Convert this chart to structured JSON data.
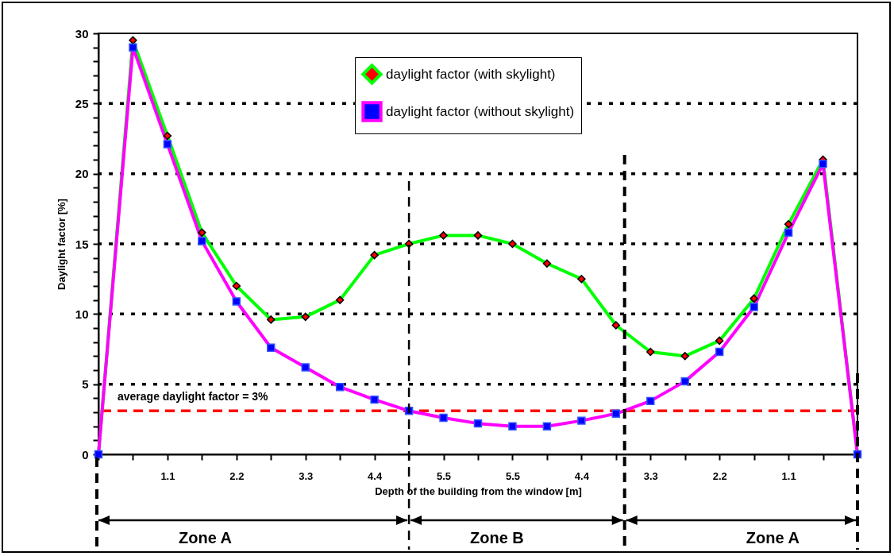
{
  "chart_data": {
    "type": "line",
    "xlabel": "Depth of the building from the window [m]",
    "ylabel": "Daylight factor [%]",
    "categories": [
      null,
      null,
      "1.1",
      null,
      "2.2",
      null,
      "3.3",
      null,
      "4.4",
      null,
      "5.5",
      null,
      "5.5",
      null,
      "4.4",
      null,
      "3.3",
      null,
      "2.2",
      null,
      "1.1",
      null,
      null
    ],
    "series": [
      {
        "name": "daylight factor (with skylight)",
        "color": "#00ff00",
        "marker": "diamond",
        "values": [
          0,
          29.5,
          22.7,
          15.8,
          12.0,
          9.6,
          9.8,
          11.0,
          14.2,
          15.0,
          15.6,
          15.6,
          15.0,
          13.6,
          12.5,
          9.2,
          7.3,
          7.0,
          8.1,
          11.1,
          16.4,
          21.0,
          0
        ]
      },
      {
        "name": "daylight factor (without skylight)",
        "color": "#ff00ff",
        "marker": "square",
        "values": [
          0,
          29.0,
          22.1,
          15.2,
          10.9,
          7.6,
          6.2,
          4.8,
          3.9,
          3.1,
          2.6,
          2.2,
          2.0,
          2.0,
          2.4,
          2.9,
          3.8,
          5.2,
          7.3,
          10.5,
          15.8,
          20.7,
          0
        ]
      }
    ],
    "ylim": [
      0,
      30
    ],
    "yticks": [
      0,
      {
        "value": 1,
        "label": null
      },
      {
        "value": 2,
        "label": null
      },
      {
        "value": 3,
        "label": null
      },
      {
        "value": 4,
        "label": null
      },
      5,
      {
        "value": 6,
        "label": null
      },
      {
        "value": 7,
        "label": null
      },
      {
        "value": 8,
        "label": null
      },
      {
        "value": 9,
        "label": null
      },
      10,
      {
        "value": 11,
        "label": null
      },
      {
        "value": 12,
        "label": null
      },
      {
        "value": 13,
        "label": null
      },
      {
        "value": 14,
        "label": null
      },
      15,
      {
        "value": 16,
        "label": null
      },
      {
        "value": 17,
        "label": null
      },
      {
        "value": 18,
        "label": null
      },
      {
        "value": 19,
        "label": null
      },
      20,
      {
        "value": 21,
        "label": null
      },
      {
        "value": 22,
        "label": null
      },
      {
        "value": 23,
        "label": null
      },
      {
        "value": 24,
        "label": null
      },
      25,
      {
        "value": 26,
        "label": null
      },
      {
        "value": 27,
        "label": null
      },
      {
        "value": 28,
        "label": null
      },
      {
        "value": 29,
        "label": null
      },
      30
    ],
    "grid": "y",
    "legend": "top right",
    "ref_lines": [
      {
        "axis": "y",
        "value": 3.1,
        "label": "average daylight factor = 3%",
        "color": "#ff0000",
        "line_style": "dashed"
      }
    ],
    "annotations": [
      "Zone A",
      "Zone B",
      "Zone A"
    ]
  }
}
